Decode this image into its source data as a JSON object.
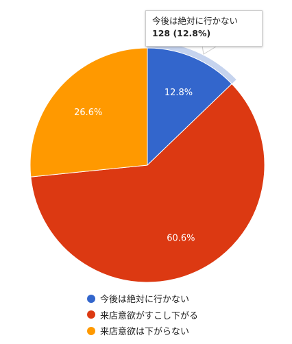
{
  "chart_data": {
    "type": "pie",
    "categories": [
      "今後は絶対に行かない",
      "来店意欲がすこし下がる",
      "来店意欲は下がらない"
    ],
    "values": [
      128,
      606,
      266
    ],
    "slice_labels": [
      "12.8%",
      "60.6%",
      "26.6%"
    ],
    "colors": [
      "#3366cc",
      "#dc3912",
      "#ff9900"
    ],
    "highlight_color": "#c5d3ee",
    "legend_position": "bottom"
  },
  "tooltip": {
    "title": "今後は絶対に行かない",
    "value": "128 (12.8%)"
  }
}
